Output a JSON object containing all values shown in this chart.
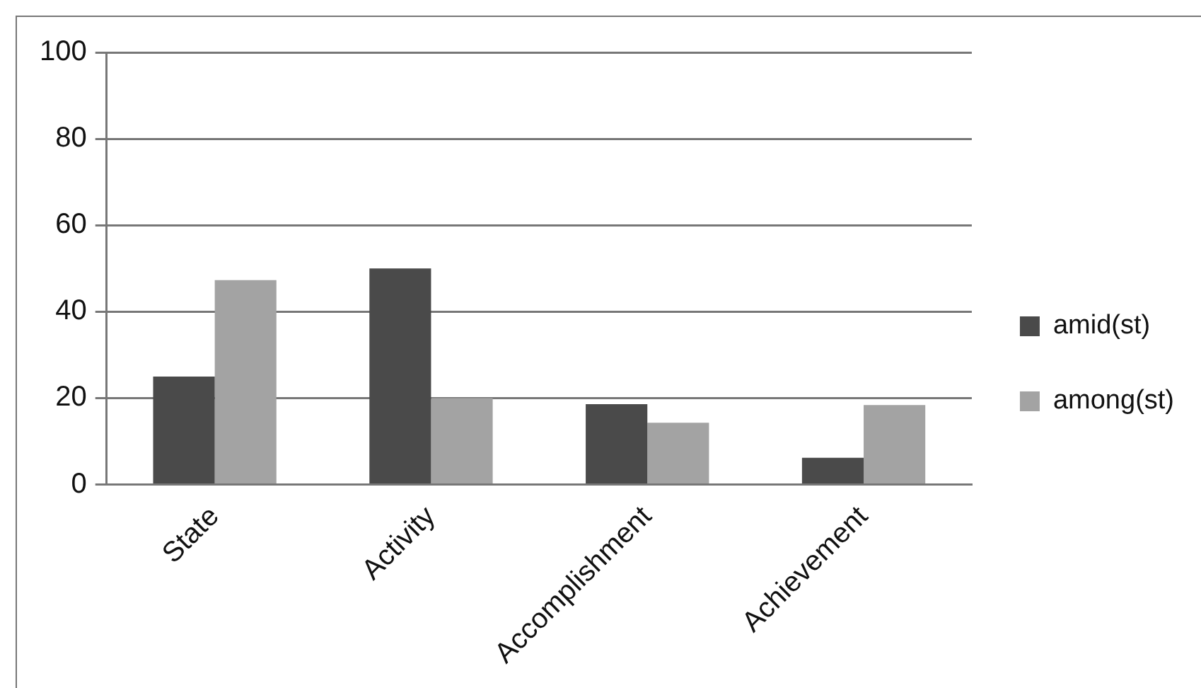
{
  "chart_data": {
    "type": "bar",
    "categories": [
      "State",
      "Activity",
      "Accomplishment",
      "Achievement"
    ],
    "series": [
      {
        "name": "amid(st)",
        "color": "#4a4a4a",
        "values": [
          25,
          50,
          18.6,
          6.2
        ]
      },
      {
        "name": "among(st)",
        "color": "#a3a3a3",
        "values": [
          47.3,
          20,
          14.3,
          18.4
        ]
      }
    ],
    "ylim": [
      0,
      100
    ],
    "yticks": [
      0,
      20,
      40,
      60,
      80,
      100
    ],
    "grid": "y",
    "legend": "right"
  }
}
